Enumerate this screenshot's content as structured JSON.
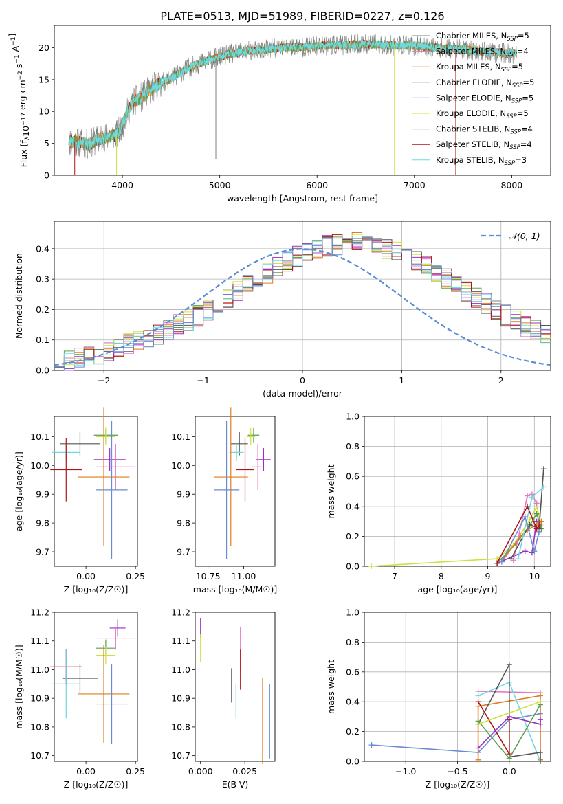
{
  "figure_title": "PLATE=0513, MJD=51989, FIBERID=0227, z=0.126",
  "colors": {
    "Chabrier MILES": "#7f7f7f",
    "Salpeter MILES": "#e377c2",
    "Kroupa MILES": "#e07b1f",
    "Chabrier ELODIE": "#5a9e4b",
    "Salpeter ELODIE": "#9a2fc4",
    "Kroupa ELODIE": "#cde03b",
    "Chabrier STELIB": "#555555",
    "Salpeter STELIB": "#b01418",
    "Kroupa STELIB": "#6fd8e0",
    "Extra": "#6a8ad6",
    "gaussian": "#5b8bd6"
  },
  "chart_data": [
    {
      "id": "spectrum",
      "type": "line",
      "xlabel": "wavelength [Angstrom, rest frame]",
      "ylabel_parts": [
        "Flux [f",
        "λ",
        "10",
        "−17",
        " erg cm",
        "−2",
        " s",
        "−1",
        " A",
        "−1",
        "]"
      ],
      "xlim": [
        3300,
        8400
      ],
      "ylim": [
        0,
        23.5
      ],
      "xticks": [
        4000,
        5000,
        6000,
        7000,
        8000
      ],
      "yticks": [
        0,
        5,
        10,
        15,
        20
      ],
      "continuum": {
        "x": [
          3450,
          3550,
          3650,
          3750,
          3850,
          3950,
          4000,
          4100,
          4200,
          4300,
          4400,
          4500,
          4700,
          4900,
          5100,
          5300,
          5500,
          5700,
          5900,
          6100,
          6300,
          6500,
          6700,
          6900,
          7100,
          7300,
          7500,
          7700,
          7900,
          8050
        ],
        "y": [
          5.3,
          5.2,
          4.8,
          5.6,
          6.0,
          6.4,
          8.0,
          11.5,
          12.2,
          13.6,
          14.5,
          15.2,
          17.0,
          18.1,
          19.0,
          19.5,
          19.8,
          20.1,
          20.1,
          20.4,
          20.4,
          20.6,
          20.4,
          20.4,
          20.2,
          19.9,
          19.7,
          19.4,
          19.2,
          19.0
        ]
      },
      "spikes": [
        {
          "x": 4960,
          "y": 2.5,
          "color_key": "Chabrier MILES"
        },
        {
          "x": 6795,
          "y": 0.0,
          "color_key": "Kroupa ELODIE"
        },
        {
          "x": 7425,
          "y": 0.0,
          "color_key": "Salpeter STELIB"
        },
        {
          "x": 3940,
          "y": 0.0,
          "color_key": "Kroupa ELODIE"
        },
        {
          "x": 3510,
          "y": 0.0,
          "color_key": "Salpeter STELIB"
        }
      ],
      "legend": [
        {
          "text": "Chabrier MILES, N",
          "sub": "SSP",
          "tail": "=5",
          "color_key": "Chabrier MILES"
        },
        {
          "text": "Salpeter MILES, N",
          "sub": "SSP",
          "tail": "=4",
          "color_key": "Salpeter MILES"
        },
        {
          "text": "Kroupa MILES, N",
          "sub": "SSP",
          "tail": "=5",
          "color_key": "Kroupa MILES"
        },
        {
          "text": "Chabrier ELODIE, N",
          "sub": "SSP",
          "tail": "=5",
          "color_key": "Chabrier ELODIE"
        },
        {
          "text": "Salpeter ELODIE, N",
          "sub": "SSP",
          "tail": "=5",
          "color_key": "Salpeter ELODIE"
        },
        {
          "text": "Kroupa ELODIE, N",
          "sub": "SSP",
          "tail": "=5",
          "color_key": "Kroupa ELODIE"
        },
        {
          "text": "Chabrier STELIB, N",
          "sub": "SSP",
          "tail": "=4",
          "color_key": "Chabrier STELIB"
        },
        {
          "text": "Salpeter STELIB, N",
          "sub": "SSP",
          "tail": "=4",
          "color_key": "Salpeter STELIB"
        },
        {
          "text": "Kroupa STELIB, N",
          "sub": "SSP",
          "tail": "=3",
          "color_key": "Kroupa STELIB"
        }
      ]
    },
    {
      "id": "residuals",
      "type": "histogram",
      "xlabel": "(data-model)/error",
      "ylabel": "Normed distribution",
      "xlim": [
        -2.5,
        2.5
      ],
      "ylim": [
        0,
        0.49
      ],
      "xticks": [
        -2,
        -1,
        0,
        1,
        2
      ],
      "yticks": [
        0.0,
        0.1,
        0.2,
        0.3,
        0.4
      ],
      "bin_width": 0.1,
      "bin_start": -2.5,
      "base_values": [
        0.025,
        0.03,
        0.04,
        0.05,
        0.055,
        0.065,
        0.075,
        0.085,
        0.095,
        0.105,
        0.12,
        0.135,
        0.15,
        0.165,
        0.18,
        0.2,
        0.22,
        0.24,
        0.26,
        0.28,
        0.3,
        0.32,
        0.34,
        0.36,
        0.375,
        0.39,
        0.4,
        0.41,
        0.415,
        0.42,
        0.42,
        0.415,
        0.41,
        0.4,
        0.39,
        0.375,
        0.36,
        0.34,
        0.32,
        0.3,
        0.28,
        0.26,
        0.24,
        0.22,
        0.2,
        0.18,
        0.16,
        0.145,
        0.13,
        0.12
      ],
      "legend_label": "𝒩(0, 1)",
      "gaussian": {
        "mu": 0,
        "sigma": 1
      }
    },
    {
      "id": "age_vs_Z",
      "type": "errorbar",
      "xlabel": "Z [log₁₀(Z/Z☉)]",
      "ylabel": "age  [log₁₀(age/yr)]",
      "xlim": [
        -0.16,
        0.26
      ],
      "ylim": [
        9.65,
        10.17
      ],
      "xticks": [
        0.0,
        0.25
      ],
      "xtick_labels": [
        "0.00",
        "0.25"
      ],
      "yticks": [
        9.7,
        9.8,
        9.9,
        10.0,
        10.1
      ],
      "points": [
        {
          "key": "Chabrier ELODIE",
          "x": 0.1,
          "xerr": 0.06,
          "y": 10.105,
          "yerr": 0.025
        },
        {
          "key": "Kroupa ELODIE",
          "x": 0.1,
          "xerr": 0.05,
          "y": 10.1,
          "yerr": 0.03
        },
        {
          "key": "Chabrier STELIB",
          "x": -0.03,
          "xerr": 0.1,
          "y": 10.075,
          "yerr": 0.04
        },
        {
          "key": "Kroupa STELIB",
          "x": -0.1,
          "xerr": 0.07,
          "y": 10.045,
          "yerr": 0.03
        },
        {
          "key": "Salpeter ELODIE",
          "x": 0.12,
          "xerr": 0.08,
          "y": 10.02,
          "yerr": 0.04
        },
        {
          "key": "Salpeter MILES",
          "x": 0.15,
          "xerr": 0.1,
          "y": 9.995,
          "yerr": 0.08
        },
        {
          "key": "Salpeter STELIB",
          "x": -0.1,
          "xerr": 0.08,
          "y": 9.985,
          "yerr": 0.11
        },
        {
          "key": "Kroupa MILES",
          "x": 0.09,
          "xerr": 0.13,
          "y": 9.96,
          "yerr": 0.24
        },
        {
          "key": "Extra",
          "x": 0.13,
          "xerr": 0.08,
          "y": 9.915,
          "yerr": 0.24
        }
      ]
    },
    {
      "id": "age_vs_mass",
      "type": "errorbar",
      "xlabel": "mass [log₁₀(M/M☉)]",
      "ylabel": "",
      "xlim": [
        10.66,
        11.22
      ],
      "ylim": [
        9.65,
        10.17
      ],
      "xticks": [
        10.75,
        11.0
      ],
      "xtick_labels": [
        "10.75",
        "11.00"
      ],
      "yticks": [
        9.7,
        9.8,
        9.9,
        10.0,
        10.1
      ],
      "points": [
        {
          "key": "Chabrier ELODIE",
          "x": 11.07,
          "xerr": 0.04,
          "y": 10.105,
          "yerr": 0.025
        },
        {
          "key": "Kroupa ELODIE",
          "x": 11.05,
          "xerr": 0.03,
          "y": 10.1,
          "yerr": 0.03
        },
        {
          "key": "Chabrier STELIB",
          "x": 10.97,
          "xerr": 0.06,
          "y": 10.075,
          "yerr": 0.04
        },
        {
          "key": "Kroupa STELIB",
          "x": 10.95,
          "xerr": 0.05,
          "y": 10.045,
          "yerr": 0.03
        },
        {
          "key": "Salpeter ELODIE",
          "x": 11.14,
          "xerr": 0.05,
          "y": 10.02,
          "yerr": 0.04
        },
        {
          "key": "Salpeter MILES",
          "x": 11.1,
          "xerr": 0.04,
          "y": 9.995,
          "yerr": 0.08
        },
        {
          "key": "Salpeter STELIB",
          "x": 11.01,
          "xerr": 0.06,
          "y": 9.985,
          "yerr": 0.11
        },
        {
          "key": "Kroupa MILES",
          "x": 10.91,
          "xerr": 0.12,
          "y": 9.96,
          "yerr": 0.24
        },
        {
          "key": "Extra",
          "x": 10.88,
          "xerr": 0.09,
          "y": 9.915,
          "yerr": 0.24
        }
      ]
    },
    {
      "id": "massweight_vs_age",
      "type": "line",
      "xlabel": "age  [log₁₀(age/yr)]",
      "ylabel": "mass weight",
      "xlim": [
        6.35,
        10.35
      ],
      "ylim": [
        0,
        1.0
      ],
      "xticks": [
        7,
        8,
        9,
        10
      ],
      "yticks": [
        0.0,
        0.2,
        0.4,
        0.6,
        0.8,
        1.0
      ],
      "series": [
        {
          "key": "Kroupa ELODIE",
          "x": [
            6.5,
            9.2,
            9.55,
            9.9,
            10.05,
            10.15
          ],
          "y": [
            0.0,
            0.05,
            0.14,
            0.31,
            0.4,
            0.27
          ]
        },
        {
          "key": "Chabrier ELODIE",
          "x": [
            9.2,
            9.6,
            9.9,
            10.05,
            10.15
          ],
          "y": [
            0.02,
            0.15,
            0.27,
            0.35,
            0.25
          ]
        },
        {
          "key": "Salpeter ELODIE",
          "x": [
            9.2,
            9.8,
            9.95,
            10.05,
            10.12
          ],
          "y": [
            0.02,
            0.1,
            0.09,
            0.3,
            0.28
          ]
        },
        {
          "key": "Kroupa MILES",
          "x": [
            9.3,
            9.7,
            9.85,
            10.05,
            10.15
          ],
          "y": [
            0.03,
            0.2,
            0.24,
            0.28,
            0.3
          ]
        },
        {
          "key": "Salpeter MILES",
          "x": [
            9.55,
            9.85,
            9.95,
            10.05
          ],
          "y": [
            0.04,
            0.47,
            0.48,
            0.42
          ]
        },
        {
          "key": "Chabrier STELIB",
          "x": [
            9.5,
            9.9,
            10.1,
            10.2
          ],
          "y": [
            0.05,
            0.28,
            0.25,
            0.65
          ]
        },
        {
          "key": "Salpeter STELIB",
          "x": [
            9.2,
            9.85,
            10.05,
            10.1
          ],
          "y": [
            0.02,
            0.4,
            0.25,
            0.27
          ]
        },
        {
          "key": "Kroupa STELIB",
          "x": [
            9.65,
            9.95,
            10.2
          ],
          "y": [
            0.05,
            0.46,
            0.53
          ]
        },
        {
          "key": "Extra",
          "x": [
            9.3,
            9.8,
            10.0,
            10.1
          ],
          "y": [
            0.03,
            0.33,
            0.1,
            0.23
          ]
        }
      ]
    },
    {
      "id": "mass_vs_Z",
      "type": "errorbar",
      "xlabel": "Z [log₁₀(Z/Z☉)]",
      "ylabel": "mass [log₁₀(M/M☉)]",
      "xlim": [
        -0.16,
        0.26
      ],
      "ylim": [
        10.68,
        11.2
      ],
      "xticks": [
        0.0,
        0.25
      ],
      "xtick_labels": [
        "0.00",
        "0.25"
      ],
      "yticks": [
        10.7,
        10.8,
        10.9,
        11.0,
        11.1,
        11.2
      ],
      "points": [
        {
          "key": "Salpeter ELODIE",
          "x": 0.16,
          "xerr": 0.04,
          "y": 11.145,
          "yerr": 0.03
        },
        {
          "key": "Salpeter MILES",
          "x": 0.15,
          "xerr": 0.1,
          "y": 11.11,
          "yerr": 0.04
        },
        {
          "key": "Chabrier ELODIE",
          "x": 0.1,
          "xerr": 0.05,
          "y": 11.075,
          "yerr": 0.03
        },
        {
          "key": "Kroupa ELODIE",
          "x": 0.1,
          "xerr": 0.05,
          "y": 11.05,
          "yerr": 0.03
        },
        {
          "key": "Salpeter STELIB",
          "x": -0.1,
          "xerr": 0.08,
          "y": 11.01,
          "yerr": 0.06
        },
        {
          "key": "Chabrier STELIB",
          "x": -0.03,
          "xerr": 0.09,
          "y": 10.97,
          "yerr": 0.05
        },
        {
          "key": "Kroupa STELIB",
          "x": -0.1,
          "xerr": 0.07,
          "y": 10.95,
          "yerr": 0.12
        },
        {
          "key": "Kroupa MILES",
          "x": 0.09,
          "xerr": 0.13,
          "y": 10.915,
          "yerr": 0.17
        },
        {
          "key": "Extra",
          "x": 0.13,
          "xerr": 0.08,
          "y": 10.88,
          "yerr": 0.14
        }
      ]
    },
    {
      "id": "mass_vs_ebv",
      "type": "errorbar",
      "xlabel": "E(B-V)",
      "ylabel": "",
      "xlim": [
        -0.003,
        0.042
      ],
      "ylim": [
        10.68,
        11.2
      ],
      "xticks": [
        0.0,
        0.025
      ],
      "xtick_labels": [
        "0.000",
        "0.025"
      ],
      "yticks": [
        10.7,
        10.8,
        10.9,
        11.0,
        11.1,
        11.2
      ],
      "points": [
        {
          "key": "Salpeter ELODIE",
          "x": 0.0,
          "xerr": 0,
          "y": 11.145,
          "yerr": 0.035
        },
        {
          "key": "Kroupa ELODIE",
          "x": 0.0,
          "xerr": 0,
          "y": 11.075,
          "yerr": 0.05
        },
        {
          "key": "Salpeter MILES",
          "x": 0.0225,
          "xerr": 0,
          "y": 11.07,
          "yerr": 0.08
        },
        {
          "key": "Salpeter STELIB",
          "x": 0.0225,
          "xerr": 0,
          "y": 11.0,
          "yerr": 0.07
        },
        {
          "key": "Chabrier STELIB",
          "x": 0.0175,
          "xerr": 0,
          "y": 10.945,
          "yerr": 0.06
        },
        {
          "key": "Kroupa STELIB",
          "x": 0.02,
          "xerr": 0,
          "y": 10.89,
          "yerr": 0.06
        },
        {
          "key": "Kroupa MILES",
          "x": 0.035,
          "xerr": 0,
          "y": 10.82,
          "yerr": 0.15
        },
        {
          "key": "Extra",
          "x": 0.039,
          "xerr": 0,
          "y": 10.82,
          "yerr": 0.13
        }
      ]
    },
    {
      "id": "massweight_vs_Z",
      "type": "line",
      "xlabel": "Z [log₁₀(Z/Z☉)]",
      "ylabel": "mass weight",
      "xlim": [
        -1.4,
        0.4
      ],
      "ylim": [
        0,
        1.0
      ],
      "xticks": [
        -1.0,
        -0.5,
        0.0
      ],
      "xtick_labels": [
        "−1.0",
        "−0.5",
        "0.0"
      ],
      "yticks": [
        0.0,
        0.2,
        0.4,
        0.6,
        0.8,
        1.0
      ],
      "series": [
        {
          "key": "Extra",
          "x": [
            -1.33,
            -0.3,
            0.0,
            0.3
          ],
          "y": [
            0.11,
            0.06,
            0.28,
            0.32
          ]
        },
        {
          "key": "Salpeter MILES",
          "x": [
            -0.3,
            0.3,
            0.3
          ],
          "y": [
            0.47,
            0.46,
            0.01
          ]
        },
        {
          "key": "Kroupa MILES",
          "x": [
            -0.3,
            -0.3,
            0.3,
            0.3
          ],
          "y": [
            0.01,
            0.37,
            0.44,
            0.01
          ]
        },
        {
          "key": "Kroupa STELIB",
          "x": [
            -0.3,
            0.0,
            0.3
          ],
          "y": [
            0.44,
            0.53,
            0.0
          ]
        },
        {
          "key": "Chabrier STELIB",
          "x": [
            -0.3,
            0.0,
            0.0,
            0.3,
            0.3
          ],
          "y": [
            0.25,
            0.65,
            0.03,
            0.06,
            0.0
          ]
        },
        {
          "key": "Salpeter STELIB",
          "x": [
            -0.3,
            0.0,
            0.0
          ],
          "y": [
            0.4,
            0.05,
            0.28
          ]
        },
        {
          "key": "Salpeter ELODIE",
          "x": [
            -0.3,
            0.0,
            0.3,
            0.3
          ],
          "y": [
            0.09,
            0.3,
            0.25,
            0.28
          ]
        },
        {
          "key": "Chabrier ELODIE",
          "x": [
            -0.3,
            0.0,
            0.3
          ],
          "y": [
            0.27,
            0.02,
            0.38
          ]
        },
        {
          "key": "Kroupa ELODIE",
          "x": [
            -0.3,
            0.3
          ],
          "y": [
            0.25,
            0.4
          ]
        }
      ]
    }
  ]
}
